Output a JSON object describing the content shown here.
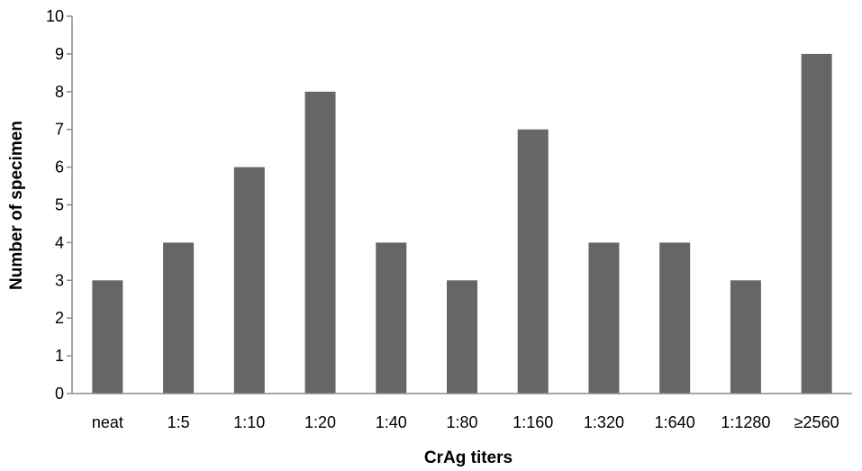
{
  "chart_data": {
    "type": "bar",
    "title": "",
    "xlabel": "CrAg titers",
    "ylabel": "Number of specimen",
    "categories": [
      "neat",
      "1:5",
      "1:10",
      "1:20",
      "1:40",
      "1:80",
      "1:160",
      "1:320",
      "1:640",
      "1:1280",
      "≥2560"
    ],
    "values": [
      3,
      4,
      6,
      8,
      4,
      3,
      7,
      4,
      4,
      3,
      9
    ],
    "ylim": [
      0,
      10
    ],
    "yticks": [
      0,
      1,
      2,
      3,
      4,
      5,
      6,
      7,
      8,
      9,
      10
    ],
    "grid": false,
    "legend": "none",
    "bar_color": "#666666",
    "axis_color": "#8c8c8c"
  }
}
